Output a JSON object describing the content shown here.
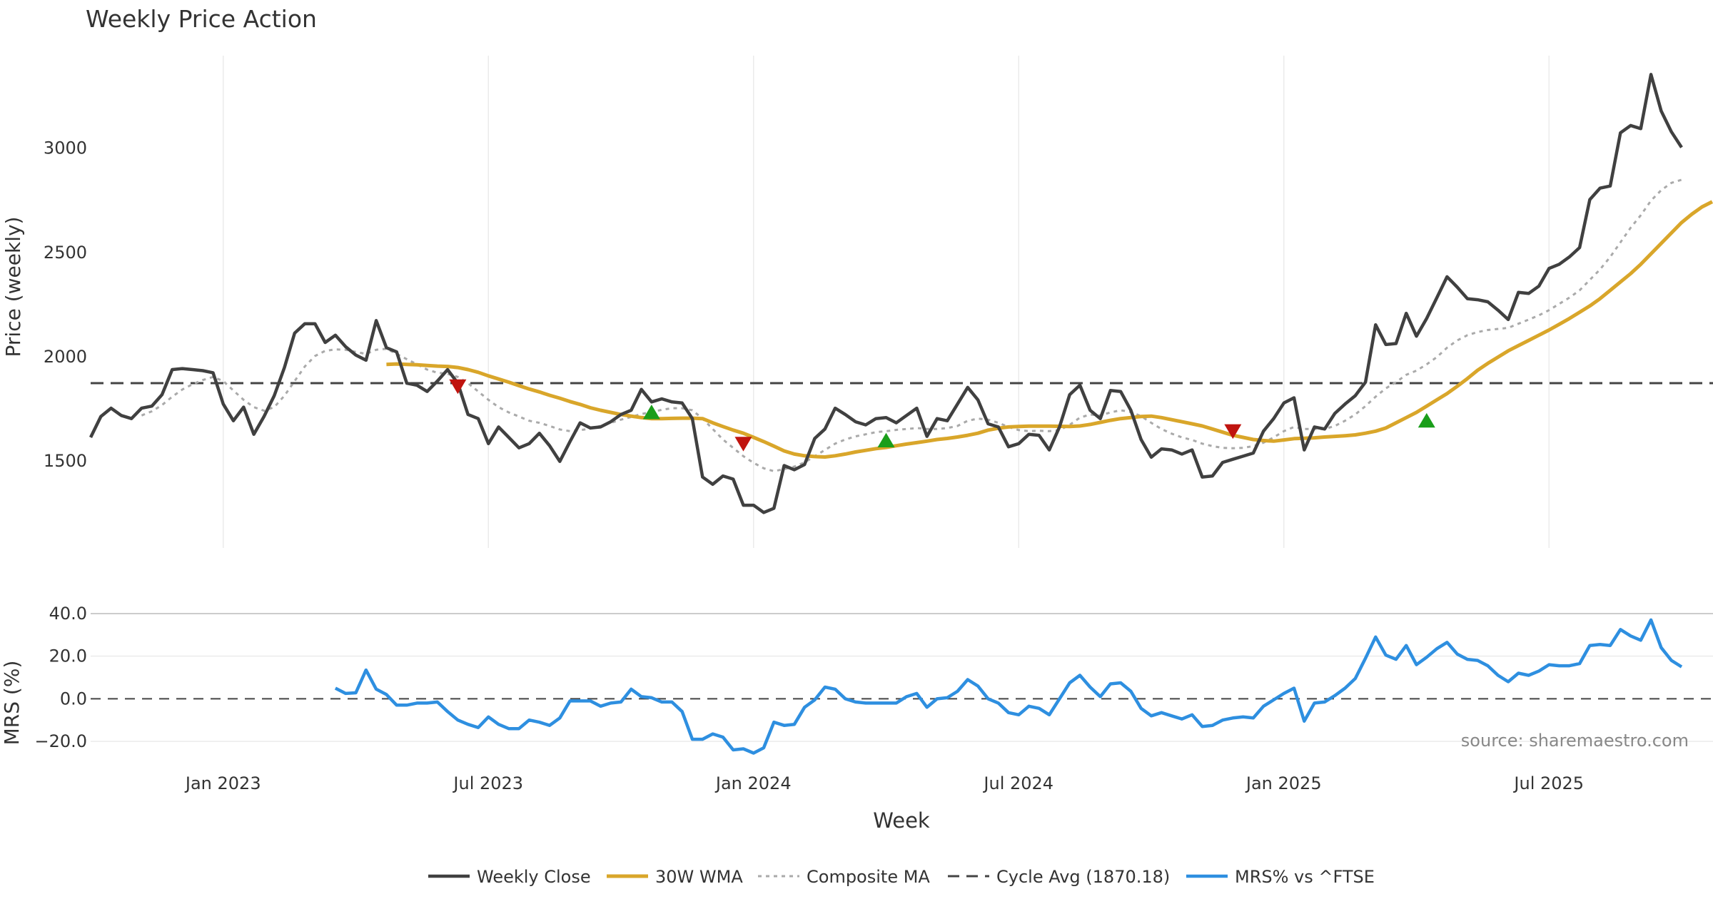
{
  "chart_data": {
    "type": "line",
    "title": "Weekly Price Action",
    "xlabel": "Week",
    "x_ticks": [
      "Jan 2023",
      "Jul 2023",
      "Jan 2024",
      "Jul 2024",
      "Jan 2025",
      "Jul 2025"
    ],
    "price_panel": {
      "ylabel": "Price (weekly)",
      "ylim": [
        1080,
        3440
      ],
      "yticks": [
        1500,
        2000,
        2500,
        3000
      ],
      "reference_line": {
        "label": "Cycle Avg (1870.18)",
        "value": 1870.18
      },
      "series": [
        {
          "name": "Weekly Close",
          "color": "#404040",
          "style": "solid",
          "values": [
            1610,
            1710,
            1750,
            1715,
            1700,
            1750,
            1760,
            1815,
            1935,
            1940,
            1935,
            1930,
            1920,
            1770,
            1690,
            1755,
            1625,
            1710,
            1810,
            1945,
            2110,
            2155,
            2155,
            2065,
            2100,
            2045,
            2005,
            1980,
            2170,
            2040,
            2020,
            1870,
            1860,
            1830,
            1880,
            1935,
            1870,
            1720,
            1700,
            1580,
            1660,
            1610,
            1560,
            1580,
            1630,
            1570,
            1495,
            1590,
            1680,
            1655,
            1660,
            1685,
            1720,
            1740,
            1840,
            1780,
            1795,
            1780,
            1775,
            1700,
            1420,
            1385,
            1425,
            1410,
            1285,
            1285,
            1250,
            1270,
            1475,
            1455,
            1480,
            1605,
            1650,
            1750,
            1720,
            1685,
            1670,
            1700,
            1705,
            1680,
            1715,
            1750,
            1615,
            1700,
            1690,
            1770,
            1850,
            1790,
            1675,
            1660,
            1565,
            1580,
            1625,
            1620,
            1550,
            1660,
            1815,
            1860,
            1740,
            1700,
            1835,
            1830,
            1740,
            1600,
            1515,
            1555,
            1550,
            1530,
            1550,
            1420,
            1425,
            1490,
            1505,
            1520,
            1535,
            1640,
            1700,
            1775,
            1800,
            1550,
            1660,
            1650,
            1725,
            1770,
            1810,
            1875,
            2150,
            2055,
            2060,
            2205,
            2095,
            2180,
            2280,
            2380,
            2330,
            2275,
            2270,
            2260,
            2220,
            2175,
            2305,
            2300,
            2335,
            2420,
            2440,
            2475,
            2520,
            2750,
            2805,
            2815,
            3070,
            3105,
            3090,
            3350,
            3175,
            3075,
            3000
          ]
        },
        {
          "name": "30W WMA",
          "color": "#d9a62a",
          "style": "solid",
          "values": [
            null,
            null,
            null,
            null,
            null,
            null,
            null,
            null,
            null,
            null,
            null,
            null,
            null,
            null,
            null,
            null,
            null,
            null,
            null,
            null,
            null,
            null,
            null,
            null,
            null,
            null,
            null,
            null,
            null,
            1960,
            1962,
            1960,
            1958,
            1955,
            1952,
            1950,
            1945,
            1935,
            1922,
            1905,
            1890,
            1875,
            1858,
            1842,
            1828,
            1812,
            1798,
            1782,
            1768,
            1752,
            1740,
            1730,
            1720,
            1712,
            1705,
            1700,
            1700,
            1701,
            1702,
            1702,
            1700,
            1680,
            1662,
            1645,
            1630,
            1610,
            1590,
            1568,
            1545,
            1530,
            1522,
            1518,
            1516,
            1522,
            1530,
            1540,
            1548,
            1556,
            1562,
            1570,
            1578,
            1585,
            1592,
            1600,
            1605,
            1612,
            1620,
            1630,
            1645,
            1654,
            1660,
            1662,
            1664,
            1664,
            1664,
            1663,
            1662,
            1665,
            1672,
            1682,
            1692,
            1700,
            1705,
            1710,
            1712,
            1705,
            1695,
            1685,
            1675,
            1665,
            1650,
            1635,
            1620,
            1610,
            1600,
            1595,
            1592,
            1598,
            1604,
            1606,
            1608,
            1612,
            1615,
            1618,
            1622,
            1630,
            1640,
            1655,
            1680,
            1705,
            1730,
            1760,
            1790,
            1820,
            1855,
            1892,
            1932,
            1965,
            1995,
            2025,
            2050,
            2075,
            2100,
            2125,
            2152,
            2180,
            2210,
            2240,
            2275,
            2315,
            2355,
            2395,
            2440,
            2490,
            2540,
            2590,
            2640,
            2680,
            2715,
            2740
          ]
        },
        {
          "name": "Composite MA",
          "color": "#aaaaaa",
          "style": "dotted",
          "values": [
            null,
            null,
            null,
            null,
            null,
            1715,
            1735,
            1765,
            1805,
            1840,
            1865,
            1885,
            1900,
            1880,
            1835,
            1790,
            1755,
            1738,
            1755,
            1810,
            1880,
            1950,
            2000,
            2025,
            2032,
            2030,
            2020,
            2010,
            2030,
            2035,
            2010,
            1985,
            1960,
            1935,
            1920,
            1915,
            1900,
            1870,
            1830,
            1790,
            1755,
            1730,
            1710,
            1690,
            1680,
            1665,
            1648,
            1640,
            1645,
            1652,
            1665,
            1680,
            1695,
            1708,
            1722,
            1732,
            1742,
            1750,
            1750,
            1740,
            1700,
            1650,
            1600,
            1560,
            1520,
            1488,
            1462,
            1448,
            1458,
            1470,
            1490,
            1520,
            1550,
            1580,
            1600,
            1615,
            1625,
            1635,
            1640,
            1646,
            1650,
            1655,
            1650,
            1650,
            1655,
            1665,
            1690,
            1700,
            1695,
            1680,
            1660,
            1645,
            1640,
            1642,
            1640,
            1645,
            1670,
            1705,
            1720,
            1715,
            1730,
            1740,
            1732,
            1712,
            1680,
            1650,
            1628,
            1610,
            1598,
            1580,
            1568,
            1560,
            1558,
            1560,
            1568,
            1585,
            1610,
            1640,
            1660,
            1650,
            1650,
            1650,
            1665,
            1690,
            1720,
            1760,
            1805,
            1845,
            1875,
            1910,
            1930,
            1960,
            1995,
            2040,
            2075,
            2100,
            2115,
            2125,
            2130,
            2135,
            2155,
            2175,
            2195,
            2220,
            2250,
            2280,
            2315,
            2365,
            2415,
            2475,
            2545,
            2615,
            2675,
            2745,
            2795,
            2830,
            2845
          ]
        }
      ],
      "markers": [
        {
          "type": "sell",
          "color": "#c0140f",
          "week": 36,
          "value": 1855
        },
        {
          "type": "buy",
          "color": "#1a9e1a",
          "week": 55,
          "value": 1730
        },
        {
          "type": "sell",
          "color": "#c0140f",
          "week": 64,
          "value": 1580
        },
        {
          "type": "buy",
          "color": "#1a9e1a",
          "week": 78,
          "value": 1595
        },
        {
          "type": "sell",
          "color": "#c0140f",
          "week": 112,
          "value": 1640
        },
        {
          "type": "buy",
          "color": "#1a9e1a",
          "week": 131,
          "value": 1690
        }
      ]
    },
    "mrs_panel": {
      "ylabel": "MRS (%)",
      "ylim": [
        -27,
        44
      ],
      "yticks": [
        -20.0,
        0.0,
        20.0,
        40.0
      ],
      "ytick_labels": [
        "−20.0",
        "0.0",
        "20.0",
        "40.0"
      ],
      "series": [
        {
          "name": "MRS% vs ^FTSE",
          "color": "#2e8fe0",
          "style": "solid",
          "values": [
            null,
            null,
            null,
            null,
            null,
            null,
            null,
            null,
            null,
            null,
            null,
            null,
            null,
            null,
            null,
            null,
            null,
            null,
            null,
            null,
            null,
            null,
            null,
            null,
            5,
            2.5,
            2.8,
            13.5,
            4.5,
            2,
            -3,
            -3,
            -2,
            -2,
            -1.5,
            -6,
            -10,
            -12,
            -13.5,
            -8.5,
            -12,
            -14,
            -14,
            -10,
            -11,
            -12.5,
            -9,
            -1,
            -1,
            -1,
            -3.5,
            -2,
            -1.5,
            4.5,
            1,
            0.5,
            -1.5,
            -1.5,
            -6,
            -19,
            -19,
            -16.5,
            -18,
            -24,
            -23.5,
            -25.5,
            -23,
            -11,
            -12.5,
            -12,
            -4,
            -0.5,
            5.5,
            4.5,
            0,
            -1.5,
            -2,
            -2,
            -2,
            -2,
            1,
            2.5,
            -4,
            0,
            0.5,
            3.5,
            9,
            6,
            0,
            -2,
            -6.5,
            -7.5,
            -3.5,
            -4.5,
            -7.5,
            0,
            7.5,
            11,
            5.5,
            1,
            7,
            7.5,
            3.5,
            -4.5,
            -8,
            -6.5,
            -8,
            -9.5,
            -7.5,
            -13,
            -12.5,
            -10,
            -9,
            -8.5,
            -9,
            -3.5,
            -0.5,
            2.5,
            5,
            -10.5,
            -2,
            -1.5,
            1.5,
            5,
            9.5,
            19,
            29,
            20.5,
            18.5,
            25,
            16,
            19.5,
            23.5,
            26.5,
            21,
            18.5,
            18,
            15.5,
            11,
            8,
            12,
            11,
            13,
            16,
            15.5,
            15.5,
            16.5,
            25,
            25.5,
            25,
            32.5,
            29.5,
            27.5,
            37,
            24,
            18,
            15
          ]
        }
      ],
      "reference_line": {
        "value": 0
      }
    },
    "legend": {
      "placement": "bottom-center",
      "entries": [
        "Weekly Close",
        "30W WMA",
        "Composite MA",
        "Cycle Avg (1870.18)",
        "MRS% vs ^FTSE"
      ]
    },
    "annotation": "source: sharemaestro.com"
  }
}
